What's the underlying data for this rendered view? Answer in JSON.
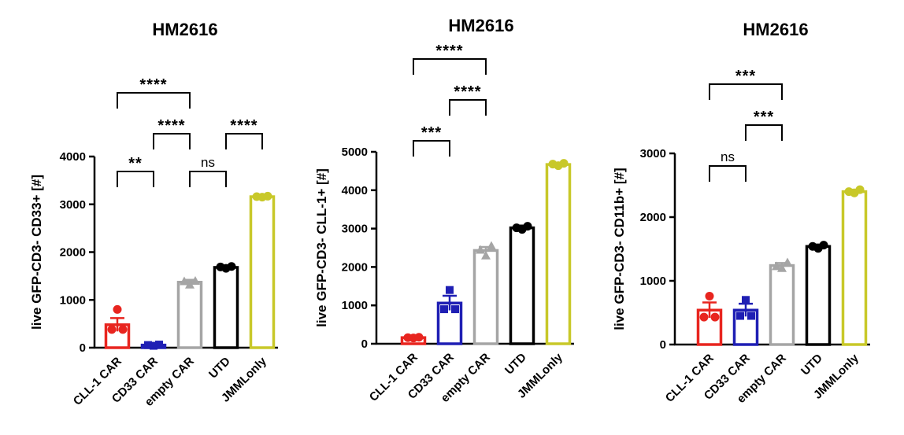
{
  "chart_data": [
    {
      "type": "bar",
      "title": "HM2616",
      "ylabel": "live GFP-CD3- CD33+ [#]",
      "ylim": [
        0,
        4000
      ],
      "yticks": [
        0,
        1000,
        2000,
        3000,
        4000
      ],
      "categories": [
        "CLL-1 CAR",
        "CD33 CAR",
        "empty CAR",
        "UTD",
        "JMMLonly"
      ],
      "values": [
        480,
        55,
        1370,
        1680,
        3160
      ],
      "error": [
        140,
        15,
        50,
        30,
        20
      ],
      "colors": [
        "#e8251f",
        "#1f1fb4",
        "#a5a5a5",
        "#000000",
        "#c8c829"
      ],
      "markers": [
        "circle",
        "square",
        "triangle",
        "circle",
        "circle"
      ],
      "points": [
        [
          800,
          380,
          380
        ],
        [
          40,
          55,
          65
        ],
        [
          1320,
          1390,
          1400
        ],
        [
          1660,
          1690,
          1700
        ],
        [
          3150,
          3160,
          3170
        ]
      ],
      "significance": [
        {
          "from": 0,
          "to": 2,
          "label": "****"
        },
        {
          "from": 1,
          "to": 2,
          "label": "****"
        },
        {
          "from": 3,
          "to": 4,
          "label": "****"
        },
        {
          "from": 0,
          "to": 1,
          "label": "**"
        },
        {
          "from": 2,
          "to": 3,
          "label": "ns"
        }
      ]
    },
    {
      "type": "bar",
      "title": "HM2616",
      "ylabel": "live GFP-CD3- CLL-1+ [#]",
      "ylim": [
        0,
        5000
      ],
      "yticks": [
        0,
        1000,
        2000,
        3000,
        4000,
        5000
      ],
      "categories": [
        "CLL-1 CAR",
        "CD33 CAR",
        "empty CAR",
        "UTD",
        "JMMLonly"
      ],
      "values": [
        160,
        1060,
        2430,
        3020,
        4670
      ],
      "error": [
        20,
        190,
        90,
        60,
        40
      ],
      "colors": [
        "#e8251f",
        "#1f1fb4",
        "#a5a5a5",
        "#000000",
        "#c8c829"
      ],
      "markers": [
        "circle",
        "square",
        "triangle",
        "circle",
        "circle"
      ],
      "points": [
        [
          150,
          160,
          170
        ],
        [
          1400,
          900,
          900
        ],
        [
          2300,
          2450,
          2550
        ],
        [
          2980,
          3020,
          3060
        ],
        [
          4640,
          4680,
          4700
        ]
      ],
      "significance": [
        {
          "from": 0,
          "to": 2,
          "label": "****"
        },
        {
          "from": 1,
          "to": 2,
          "label": "****"
        },
        {
          "from": 0,
          "to": 1,
          "label": "***"
        }
      ]
    },
    {
      "type": "bar",
      "title": "HM2616",
      "ylabel": "live GFP-CD3- CD11b+ [#]",
      "ylim": [
        0,
        3000
      ],
      "yticks": [
        0,
        1000,
        2000,
        3000
      ],
      "categories": [
        "CLL-1 CAR",
        "CD33 CAR",
        "empty CAR",
        "UTD",
        "JMMLonly"
      ],
      "values": [
        540,
        540,
        1240,
        1540,
        2400
      ],
      "error": [
        120,
        100,
        40,
        30,
        30
      ],
      "colors": [
        "#e8251f",
        "#1f1fb4",
        "#a5a5a5",
        "#000000",
        "#c8c829"
      ],
      "markers": [
        "circle",
        "square",
        "triangle",
        "circle",
        "circle"
      ],
      "points": [
        [
          760,
          430,
          430
        ],
        [
          700,
          450,
          450
        ],
        [
          1200,
          1230,
          1290
        ],
        [
          1510,
          1540,
          1560
        ],
        [
          2380,
          2400,
          2430
        ]
      ],
      "significance": [
        {
          "from": 0,
          "to": 2,
          "label": "***"
        },
        {
          "from": 1,
          "to": 2,
          "label": "***"
        },
        {
          "from": 0,
          "to": 1,
          "label": "ns"
        }
      ]
    }
  ]
}
